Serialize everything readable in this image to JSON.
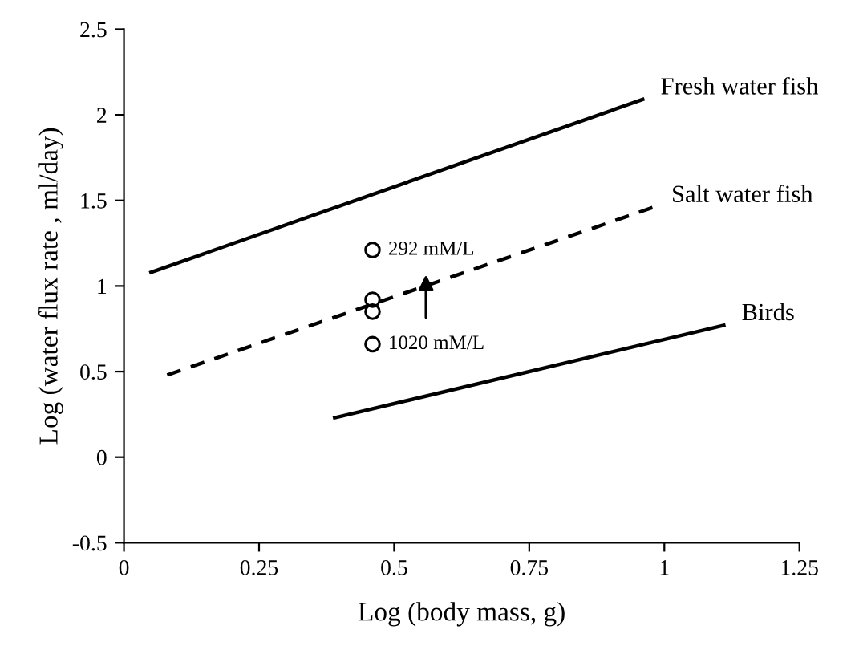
{
  "chart_data": {
    "type": "line",
    "xlabel": "Log (body mass, g)",
    "ylabel": "Log (water flux rate , ml/day)",
    "xlim": [
      0,
      1.25
    ],
    "xticks": [
      0,
      0.25,
      0.5,
      0.75,
      1,
      1.25
    ],
    "ylim": [
      -0.5,
      2.5
    ],
    "yticks": [
      -0.5,
      0,
      0.5,
      1,
      1.5,
      2,
      2.5
    ],
    "grid": false,
    "legend": false,
    "marker": "none",
    "series": [
      {
        "name": "Fresh water fish",
        "color": "#000000",
        "x": [
          0.05,
          0.96
        ],
        "values": [
          1.08,
          2.09
        ],
        "line_style": "solid"
      },
      {
        "name": "Salt water fish",
        "color": "#000000",
        "x": [
          0.08,
          0.98
        ],
        "values": [
          0.48,
          1.46
        ],
        "line_style": "dashed"
      },
      {
        "name": "Birds",
        "color": "#000000",
        "x": [
          0.39,
          1.11
        ],
        "values": [
          0.23,
          0.77
        ],
        "line_style": "solid"
      },
      {
        "type": "scatter",
        "color": "#000000",
        "x": [
          0.46,
          0.46,
          0.46,
          0.46
        ],
        "values": [
          1.21,
          0.92,
          0.85,
          0.66
        ],
        "marker": "circle"
      }
    ],
    "annotations": [
      {
        "text": "292 mM/L",
        "x": 0.46,
        "y": 1.21
      },
      {
        "text": "1020 mM/L",
        "x": 0.46,
        "y": 0.66
      }
    ]
  }
}
